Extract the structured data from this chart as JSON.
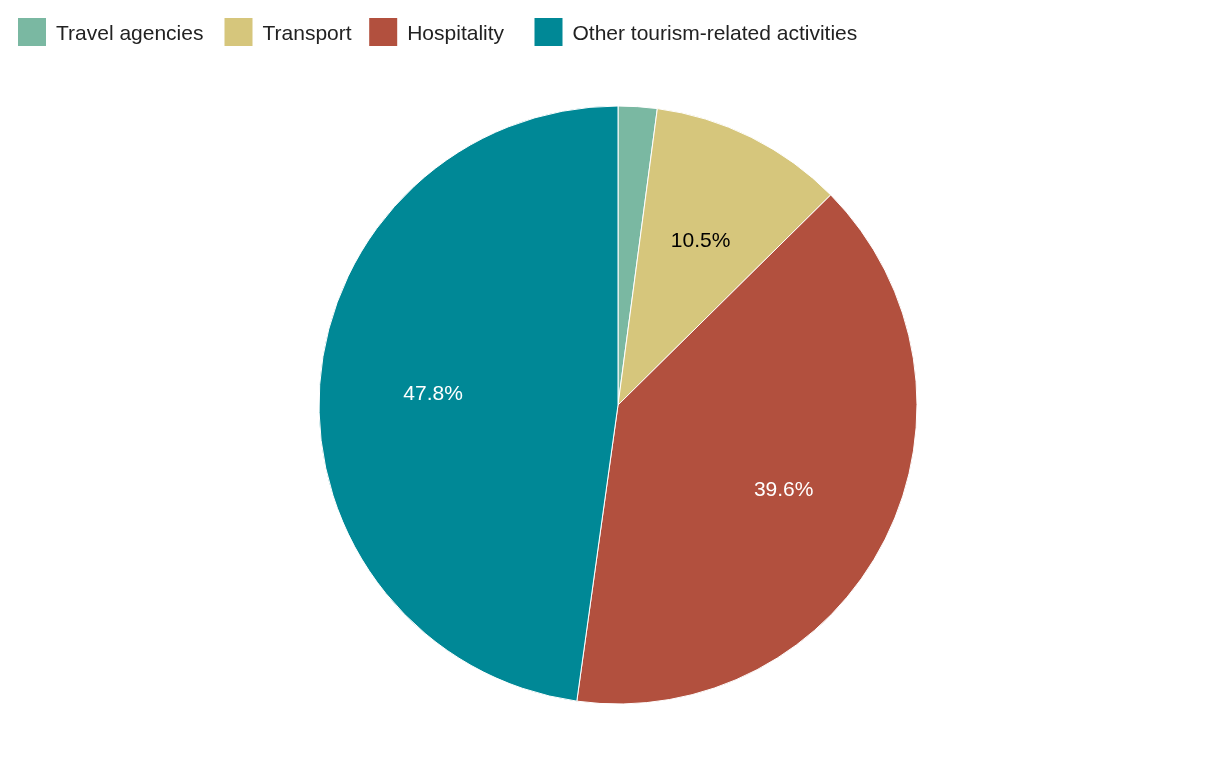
{
  "chart_data": {
    "type": "pie",
    "categories": [
      "Travel agencies",
      "Transport",
      "Hospitality",
      "Other tourism-related activities"
    ],
    "values": [
      2.1,
      10.5,
      39.6,
      47.8
    ],
    "colors": [
      "#7ab8a2",
      "#d6c67c",
      "#b2503e",
      "#008896"
    ],
    "value_labels": [
      null,
      "10.5%",
      "39.6%",
      "47.8%"
    ],
    "legend": "top left"
  }
}
